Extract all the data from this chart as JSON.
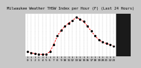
{
  "title": "Milwaukee Weather THSW Index per Hour (F) (Last 24 Hours)",
  "hours": [
    0,
    1,
    2,
    3,
    4,
    5,
    6,
    7,
    8,
    9,
    10,
    11,
    12,
    13,
    14,
    15,
    16,
    17,
    18,
    19,
    20,
    21,
    22,
    23
  ],
  "values": [
    35,
    33,
    31,
    30,
    29,
    30,
    35,
    50,
    68,
    80,
    88,
    95,
    100,
    107,
    103,
    98,
    88,
    78,
    68,
    60,
    55,
    52,
    50,
    47
  ],
  "line_color": "#ff0000",
  "marker_color": "#000000",
  "bg_color": "#c8c8c8",
  "plot_bg": "#ffffff",
  "grid_color": "#888888",
  "ylim": [
    25,
    115
  ],
  "yticks": [
    30,
    50,
    70,
    90,
    110
  ],
  "title_fontsize": 4.0,
  "tick_fontsize": 3.2,
  "right_panel_color": "#1a1a1a",
  "right_panel_text": "#ffffff"
}
